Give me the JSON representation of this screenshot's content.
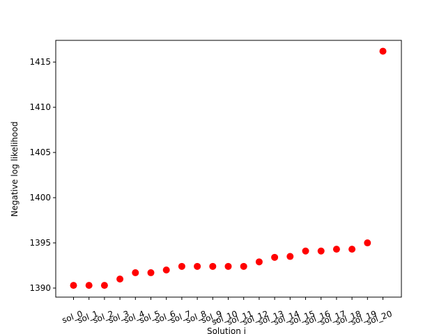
{
  "chart_data": {
    "type": "scatter",
    "xlabel": "Solution i",
    "ylabel": "Negative log likelihood",
    "ylim": [
      1389,
      1417.4
    ],
    "yticks": [
      1390,
      1395,
      1400,
      1405,
      1410,
      1415
    ],
    "grid": false,
    "categories": [
      "sol_0",
      "sol_1",
      "sol_2",
      "sol_3",
      "sol_4",
      "sol_5",
      "sol_6",
      "sol_7",
      "sol_8",
      "sol_9",
      "sol_10",
      "sol_11",
      "sol_12",
      "sol_13",
      "sol_14",
      "sol_15",
      "sol_16",
      "sol_17",
      "sol_18",
      "sol_19",
      "sol_20"
    ],
    "values": [
      1390.3,
      1390.3,
      1390.3,
      1391.0,
      1391.7,
      1391.7,
      1392.0,
      1392.4,
      1392.4,
      1392.4,
      1392.4,
      1392.4,
      1392.9,
      1393.4,
      1393.5,
      1394.1,
      1394.1,
      1394.3,
      1394.3,
      1395.0,
      1416.2
    ],
    "marker_color": "#ff0000"
  }
}
